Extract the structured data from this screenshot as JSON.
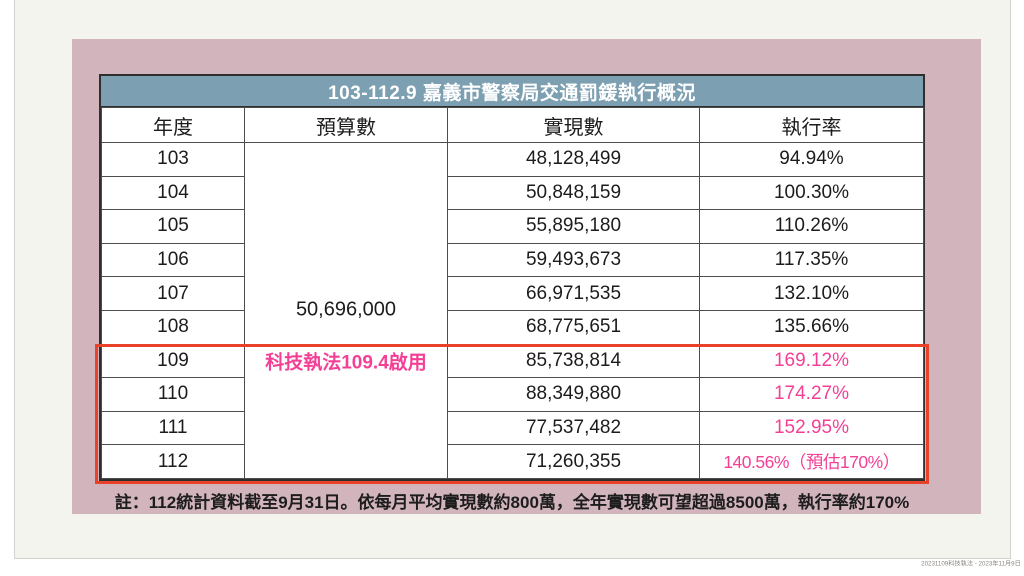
{
  "slide": {
    "title": "103-112.9 嘉義市警察局交通罰鍰執行概況",
    "note": "註：112統計資料截至9月31日。依每月平均實現數約800萬，全年實現數可望超過8500萬，執行率約170%",
    "caption": "20231109科技執法 - 2023年11月9日"
  },
  "table": {
    "headers": [
      "年度",
      "預算數",
      "實現數",
      "執行率"
    ],
    "budget": "50,696,000",
    "budget_annotation": "科技執法109.4啟用",
    "rows": [
      {
        "year": "103",
        "realized": "48,128,499",
        "rate": "94.94%"
      },
      {
        "year": "104",
        "realized": "50,848,159",
        "rate": "100.30%"
      },
      {
        "year": "105",
        "realized": "55,895,180",
        "rate": "110.26%"
      },
      {
        "year": "106",
        "realized": "59,493,673",
        "rate": "117.35%"
      },
      {
        "year": "107",
        "realized": "66,971,535",
        "rate": "132.10%"
      },
      {
        "year": "108",
        "realized": "68,775,651",
        "rate": "135.66%"
      },
      {
        "year": "109",
        "realized": "85,738,814",
        "rate": "169.12%"
      },
      {
        "year": "110",
        "realized": "88,349,880",
        "rate": "174.27%"
      },
      {
        "year": "111",
        "realized": "77,537,482",
        "rate": "152.95%"
      },
      {
        "year": "112",
        "realized": "71,260,355",
        "rate": "140.56%（預估170%）"
      }
    ],
    "highlighted_years": [
      "109",
      "110",
      "111",
      "112"
    ]
  },
  "colors": {
    "slide_background": "#f4f4ee",
    "panel_pink": "#d2b4bd",
    "table_header_blue": "#7c9fb2",
    "highlight_text_pink": "#f43f96",
    "highlight_border_red": "#e8432a"
  },
  "chart_data": {
    "type": "table",
    "title": "103-112.9 嘉義市警察局交通罰鍰執行概況",
    "columns": [
      "年度",
      "預算數",
      "實現數",
      "執行率"
    ],
    "budget_all_years": 50696000,
    "rows": [
      {
        "年度": 103,
        "實現數": 48128499,
        "執行率": "94.94%"
      },
      {
        "年度": 104,
        "實現數": 50848159,
        "執行率": "100.30%"
      },
      {
        "年度": 105,
        "實現數": 55895180,
        "執行率": "110.26%"
      },
      {
        "年度": 106,
        "實現數": 59493673,
        "執行率": "117.35%"
      },
      {
        "年度": 107,
        "實現數": 66971535,
        "執行率": "132.10%"
      },
      {
        "年度": 108,
        "實現數": 68775651,
        "執行率": "135.66%"
      },
      {
        "年度": 109,
        "實現數": 85738814,
        "執行率": "169.12%"
      },
      {
        "年度": 110,
        "實現數": 88349880,
        "執行率": "174.27%"
      },
      {
        "年度": 111,
        "實現數": 77537482,
        "執行率": "152.95%"
      },
      {
        "年度": 112,
        "實現數": 71260355,
        "執行率": "140.56%（預估170%）"
      }
    ],
    "annotation": "科技執法109.4啟用",
    "note": "註：112統計資料截至9月31日。依每月平均實現數約800萬，全年實現數可望超過8500萬，執行率約170%"
  }
}
